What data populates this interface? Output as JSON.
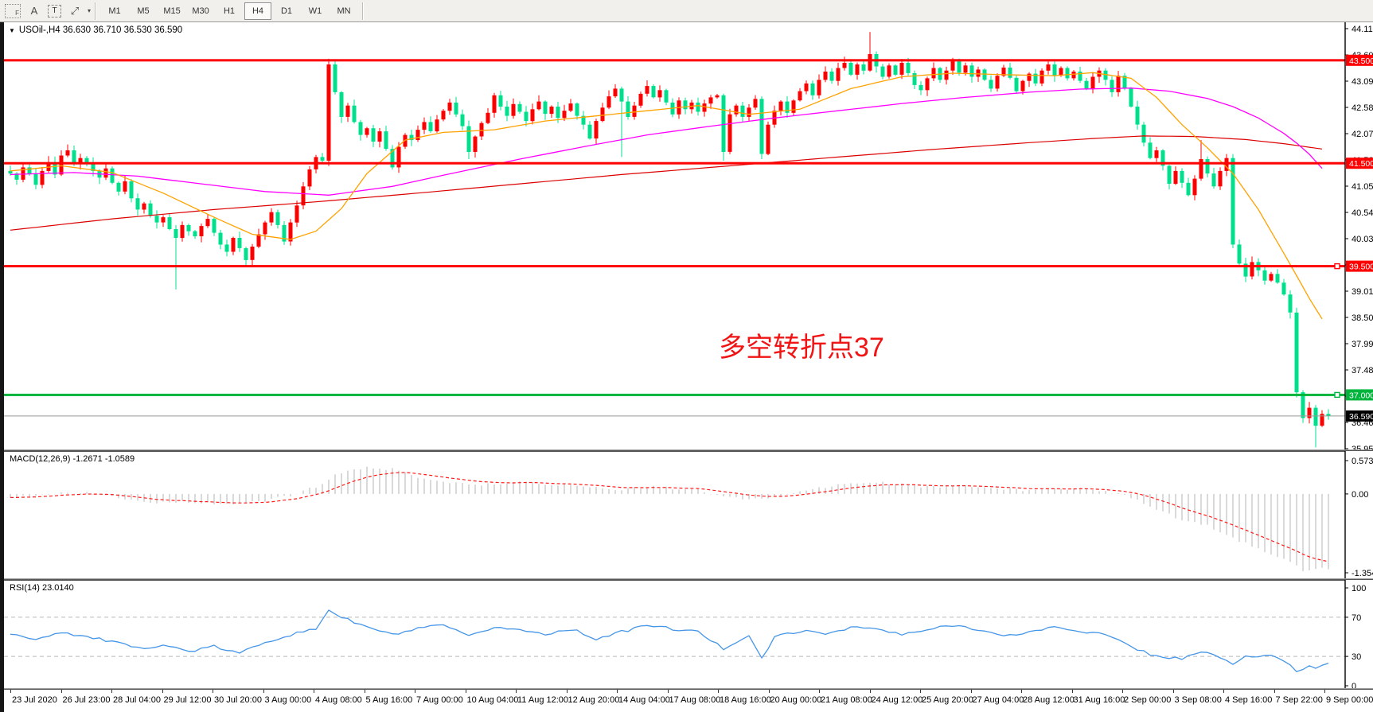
{
  "toolbar": {
    "icons": [
      {
        "name": "indicator-grid-icon",
        "glyph": "F"
      },
      {
        "name": "text-label-icon",
        "glyph": "A"
      },
      {
        "name": "text-box-icon",
        "glyph": "T"
      },
      {
        "name": "crosshair-arrows-icon",
        "glyph": "⤢"
      },
      {
        "name": "dropdown-caret-icon",
        "glyph": "▾"
      }
    ],
    "timeframes": [
      "M1",
      "M5",
      "M15",
      "M30",
      "H1",
      "H4",
      "D1",
      "W1",
      "MN"
    ],
    "active_timeframe": "H4"
  },
  "chart": {
    "dropdown_arrow": "▼",
    "title": "USOil-,H4  36.630 36.710 36.530 36.590",
    "annotation": {
      "text": "多空转折点37",
      "color": "#f01414"
    }
  },
  "panels": {
    "macd": {
      "label": "MACD(12,26,9) -1.2671 -1.0589",
      "axis_labels": [
        "0.573",
        "0.00",
        "-1.3548"
      ]
    },
    "rsi": {
      "label": "RSI(14) 23.0140",
      "axis_labels": [
        "100",
        "70",
        "30",
        "0"
      ]
    }
  },
  "price_axis": {
    "tick_labels": [
      "44.115",
      "43.605",
      "43.095",
      "42.585",
      "42.075",
      "41.565",
      "41.055",
      "40.545",
      "40.035",
      "39.525",
      "39.015",
      "38.505",
      "37.995",
      "37.485",
      "36.975",
      "36.465",
      "35.955"
    ],
    "level_badges": [
      {
        "label": "43.500",
        "value": 43.5,
        "color": "#ff0000",
        "handle": false
      },
      {
        "label": "41.500",
        "value": 41.5,
        "color": "#ff0000",
        "handle": false
      },
      {
        "label": "39.500",
        "value": 39.5,
        "color": "#ff0000",
        "handle": true
      },
      {
        "label": "37.000",
        "value": 37.0,
        "color": "#00b43c",
        "handle": true
      }
    ],
    "current_badge": {
      "label": "36.590",
      "value": 36.59,
      "bg": "#000000"
    }
  },
  "date_axis": {
    "labels": [
      "23 Jul 2020",
      "26 Jul 23:00",
      "28 Jul 04:00",
      "29 Jul 12:00",
      "30 Jul 20:00",
      "3 Aug 00:00",
      "4 Aug 08:00",
      "5 Aug 16:00",
      "7 Aug 00:00",
      "10 Aug 04:00",
      "11 Aug 12:00",
      "12 Aug 20:00",
      "14 Aug 04:00",
      "17 Aug 08:00",
      "18 Aug 16:00",
      "20 Aug 00:00",
      "21 Aug 08:00",
      "24 Aug 12:00",
      "25 Aug 20:00",
      "27 Aug 04:00",
      "28 Aug 12:00",
      "31 Aug 16:00",
      "2 Sep 00:00",
      "3 Sep 08:00",
      "4 Sep 16:00",
      "7 Sep 22:00",
      "9 Sep 00:00"
    ]
  },
  "colors": {
    "up_candle": "#ff0000",
    "down_candle": "#00e08c",
    "ma_fast_orange": "#ffa200",
    "ma_mid_magenta": "#ff00ff",
    "ma_slow_red": "#dd0000",
    "macd_hist": "#c9c9c9",
    "macd_signal": "#ff1a1a",
    "rsi_line": "#4596e8",
    "level_red": "#ff0000",
    "level_green": "#00b43c",
    "current_line": "#999999",
    "rsi_level_dash": "#b8b8b8"
  },
  "chart_data": {
    "type": "candlestick",
    "symbol": "USOil-",
    "timeframe": "H4",
    "current_ohlc": {
      "open": 36.63,
      "high": 36.71,
      "low": 36.53,
      "close": 36.59
    },
    "y_ticks": [
      44.115,
      43.605,
      43.095,
      42.585,
      42.075,
      41.565,
      41.055,
      40.545,
      40.035,
      39.525,
      39.015,
      38.505,
      37.995,
      37.485,
      36.975,
      36.465,
      35.955
    ],
    "horizontal_lines": [
      {
        "value": 43.5,
        "color": "#ff0000"
      },
      {
        "value": 41.5,
        "color": "#ff0000"
      },
      {
        "value": 39.5,
        "color": "#ff0000"
      },
      {
        "value": 37.0,
        "color": "#00b43c"
      },
      {
        "value": 36.59,
        "color": "#999999",
        "role": "current-price"
      }
    ],
    "first_open": 41.35,
    "closes": [
      41.3,
      41.18,
      41.42,
      41.3,
      41.08,
      41.35,
      41.52,
      41.28,
      41.65,
      41.75,
      41.48,
      41.6,
      41.5,
      41.35,
      41.22,
      41.4,
      41.12,
      40.95,
      41.15,
      40.82,
      40.6,
      40.72,
      40.48,
      40.35,
      40.45,
      40.22,
      40.05,
      40.3,
      40.18,
      40.08,
      40.28,
      40.42,
      40.15,
      39.92,
      39.78,
      40.05,
      39.85,
      39.62,
      39.88,
      40.12,
      40.35,
      40.55,
      40.3,
      39.98,
      40.35,
      40.68,
      41.05,
      41.38,
      41.62,
      41.55,
      43.42,
      42.88,
      42.4,
      42.62,
      42.3,
      42.05,
      42.18,
      41.92,
      42.12,
      41.78,
      41.42,
      41.82,
      42.05,
      41.95,
      42.15,
      42.3,
      42.12,
      42.35,
      42.52,
      42.68,
      42.45,
      42.22,
      41.72,
      42.02,
      42.28,
      42.48,
      42.82,
      42.6,
      42.42,
      42.65,
      42.5,
      42.32,
      42.55,
      42.7,
      42.46,
      42.6,
      42.38,
      42.52,
      42.66,
      42.42,
      42.25,
      41.98,
      42.32,
      42.58,
      42.8,
      42.95,
      42.7,
      42.4,
      42.62,
      42.85,
      43.0,
      42.78,
      42.92,
      42.68,
      42.45,
      42.72,
      42.55,
      42.68,
      42.5,
      42.66,
      42.78,
      42.82,
      41.72,
      42.45,
      42.62,
      42.4,
      42.58,
      42.75,
      41.68,
      42.25,
      42.52,
      42.7,
      42.48,
      42.72,
      42.9,
      43.05,
      42.82,
      43.12,
      43.28,
      43.1,
      43.35,
      43.45,
      43.22,
      43.42,
      43.3,
      43.62,
      43.38,
      43.18,
      43.4,
      43.22,
      43.45,
      43.25,
      43.02,
      42.92,
      43.15,
      43.35,
      43.12,
      43.3,
      43.48,
      43.26,
      43.4,
      43.18,
      43.32,
      43.12,
      42.95,
      43.2,
      43.36,
      43.16,
      42.9,
      43.1,
      43.24,
      43.05,
      43.3,
      43.42,
      43.2,
      43.35,
      43.15,
      43.28,
      43.1,
      42.95,
      43.18,
      43.3,
      43.12,
      42.88,
      43.2,
      42.95,
      42.6,
      42.25,
      41.9,
      41.6,
      41.75,
      41.45,
      41.1,
      41.35,
      41.12,
      40.88,
      41.2,
      41.58,
      41.3,
      41.05,
      41.35,
      41.6,
      39.92,
      39.55,
      39.3,
      39.58,
      39.42,
      39.22,
      39.35,
      39.18,
      38.95,
      38.6,
      37.05,
      36.55,
      36.75,
      36.4,
      36.63,
      36.59
    ],
    "wick_overrides": {
      "26": {
        "low": 39.05
      },
      "37": {
        "low": 39.5
      },
      "50": {
        "high": 43.53
      },
      "72": {
        "low": 41.58
      },
      "96": {
        "low": 41.62
      },
      "112": {
        "low": 41.55
      },
      "118": {
        "low": 41.58
      },
      "135": {
        "high": 44.05
      },
      "187": {
        "high": 41.95
      },
      "192": {
        "low": 39.85
      },
      "202": {
        "low": 36.95
      },
      "205": {
        "low": 35.98
      }
    },
    "moving_averages": {
      "orange_fast": [
        [
          0,
          41.35
        ],
        [
          8,
          41.45
        ],
        [
          16,
          41.32
        ],
        [
          24,
          40.92
        ],
        [
          32,
          40.45
        ],
        [
          38,
          40.12
        ],
        [
          44,
          40.02
        ],
        [
          48,
          40.18
        ],
        [
          52,
          40.62
        ],
        [
          56,
          41.3
        ],
        [
          62,
          41.95
        ],
        [
          68,
          42.1
        ],
        [
          76,
          42.15
        ],
        [
          84,
          42.32
        ],
        [
          92,
          42.42
        ],
        [
          100,
          42.52
        ],
        [
          108,
          42.62
        ],
        [
          116,
          42.45
        ],
        [
          124,
          42.55
        ],
        [
          132,
          42.95
        ],
        [
          140,
          43.18
        ],
        [
          148,
          43.25
        ],
        [
          156,
          43.22
        ],
        [
          164,
          43.2
        ],
        [
          170,
          43.26
        ],
        [
          176,
          43.15
        ],
        [
          180,
          42.78
        ],
        [
          184,
          42.25
        ],
        [
          188,
          41.8
        ],
        [
          192,
          41.3
        ],
        [
          196,
          40.6
        ],
        [
          200,
          39.75
        ],
        [
          203,
          39.1
        ],
        [
          205,
          38.65
        ],
        [
          207,
          38.3
        ]
      ],
      "magenta_mid": [
        [
          0,
          41.28
        ],
        [
          10,
          41.32
        ],
        [
          20,
          41.25
        ],
        [
          30,
          41.1
        ],
        [
          40,
          40.95
        ],
        [
          50,
          40.88
        ],
        [
          60,
          41.05
        ],
        [
          70,
          41.32
        ],
        [
          80,
          41.58
        ],
        [
          90,
          41.82
        ],
        [
          100,
          42.05
        ],
        [
          110,
          42.22
        ],
        [
          120,
          42.38
        ],
        [
          130,
          42.52
        ],
        [
          140,
          42.66
        ],
        [
          150,
          42.78
        ],
        [
          160,
          42.88
        ],
        [
          168,
          42.94
        ],
        [
          176,
          42.96
        ],
        [
          182,
          42.9
        ],
        [
          188,
          42.76
        ],
        [
          192,
          42.6
        ],
        [
          196,
          42.38
        ],
        [
          200,
          42.08
        ],
        [
          203,
          41.8
        ],
        [
          205,
          41.55
        ],
        [
          207,
          41.25
        ]
      ],
      "red_slow": [
        [
          0,
          40.2
        ],
        [
          16,
          40.42
        ],
        [
          32,
          40.6
        ],
        [
          48,
          40.75
        ],
        [
          64,
          40.92
        ],
        [
          80,
          41.1
        ],
        [
          96,
          41.28
        ],
        [
          112,
          41.44
        ],
        [
          128,
          41.6
        ],
        [
          144,
          41.76
        ],
        [
          160,
          41.9
        ],
        [
          170,
          41.98
        ],
        [
          178,
          42.03
        ],
        [
          186,
          42.02
        ],
        [
          194,
          41.96
        ],
        [
          200,
          41.88
        ],
        [
          207,
          41.76
        ]
      ]
    },
    "macd": {
      "current": {
        "macd": -1.2671,
        "signal": -1.0589
      },
      "axis_values": [
        0.573,
        0.0,
        -1.3548
      ],
      "anchors": [
        [
          0,
          -0.05
        ],
        [
          4,
          -0.02
        ],
        [
          8,
          0.03
        ],
        [
          12,
          0.02
        ],
        [
          16,
          -0.05
        ],
        [
          20,
          -0.12
        ],
        [
          24,
          -0.15
        ],
        [
          28,
          -0.13
        ],
        [
          32,
          -0.16
        ],
        [
          36,
          -0.18
        ],
        [
          40,
          -0.12
        ],
        [
          44,
          -0.02
        ],
        [
          48,
          0.12
        ],
        [
          52,
          0.38
        ],
        [
          56,
          0.45
        ],
        [
          60,
          0.42
        ],
        [
          64,
          0.3
        ],
        [
          68,
          0.22
        ],
        [
          72,
          0.15
        ],
        [
          76,
          0.18
        ],
        [
          80,
          0.2
        ],
        [
          84,
          0.18
        ],
        [
          88,
          0.15
        ],
        [
          92,
          0.1
        ],
        [
          96,
          0.08
        ],
        [
          100,
          0.12
        ],
        [
          104,
          0.1
        ],
        [
          108,
          0.06
        ],
        [
          112,
          -0.05
        ],
        [
          116,
          -0.1
        ],
        [
          120,
          -0.05
        ],
        [
          124,
          0.05
        ],
        [
          128,
          0.12
        ],
        [
          132,
          0.18
        ],
        [
          136,
          0.2
        ],
        [
          140,
          0.16
        ],
        [
          144,
          0.12
        ],
        [
          148,
          0.14
        ],
        [
          152,
          0.12
        ],
        [
          156,
          0.08
        ],
        [
          160,
          0.06
        ],
        [
          164,
          0.1
        ],
        [
          168,
          0.08
        ],
        [
          172,
          0.05
        ],
        [
          176,
          -0.05
        ],
        [
          180,
          -0.25
        ],
        [
          184,
          -0.45
        ],
        [
          188,
          -0.55
        ],
        [
          192,
          -0.75
        ],
        [
          196,
          -0.95
        ],
        [
          200,
          -1.1
        ],
        [
          203,
          -1.32
        ],
        [
          205,
          -1.3
        ],
        [
          207,
          -1.27
        ]
      ]
    },
    "rsi": {
      "current": 23.014,
      "levels": [
        70,
        30
      ],
      "axis_values": [
        100,
        70,
        30,
        0
      ],
      "anchors": [
        [
          0,
          52
        ],
        [
          4,
          48
        ],
        [
          8,
          55
        ],
        [
          12,
          50
        ],
        [
          16,
          45
        ],
        [
          20,
          38
        ],
        [
          24,
          42
        ],
        [
          28,
          35
        ],
        [
          32,
          40
        ],
        [
          36,
          33
        ],
        [
          40,
          45
        ],
        [
          44,
          52
        ],
        [
          48,
          58
        ],
        [
          50,
          78
        ],
        [
          52,
          70
        ],
        [
          56,
          60
        ],
        [
          60,
          52
        ],
        [
          64,
          58
        ],
        [
          68,
          62
        ],
        [
          72,
          50
        ],
        [
          76,
          60
        ],
        [
          80,
          57
        ],
        [
          84,
          53
        ],
        [
          88,
          58
        ],
        [
          92,
          48
        ],
        [
          96,
          55
        ],
        [
          100,
          62
        ],
        [
          104,
          58
        ],
        [
          108,
          55
        ],
        [
          112,
          38
        ],
        [
          116,
          52
        ],
        [
          118,
          27
        ],
        [
          120,
          50
        ],
        [
          124,
          56
        ],
        [
          128,
          53
        ],
        [
          132,
          60
        ],
        [
          136,
          58
        ],
        [
          140,
          52
        ],
        [
          144,
          57
        ],
        [
          148,
          62
        ],
        [
          152,
          58
        ],
        [
          156,
          50
        ],
        [
          160,
          55
        ],
        [
          164,
          60
        ],
        [
          168,
          56
        ],
        [
          172,
          52
        ],
        [
          176,
          40
        ],
        [
          180,
          30
        ],
        [
          184,
          28
        ],
        [
          188,
          35
        ],
        [
          192,
          22
        ],
        [
          194,
          30
        ],
        [
          198,
          30
        ],
        [
          200,
          26
        ],
        [
          202,
          15
        ],
        [
          204,
          20
        ],
        [
          205,
          18
        ],
        [
          206,
          22
        ],
        [
          207,
          23
        ]
      ]
    },
    "x_labels_every_n_bars": 8
  }
}
